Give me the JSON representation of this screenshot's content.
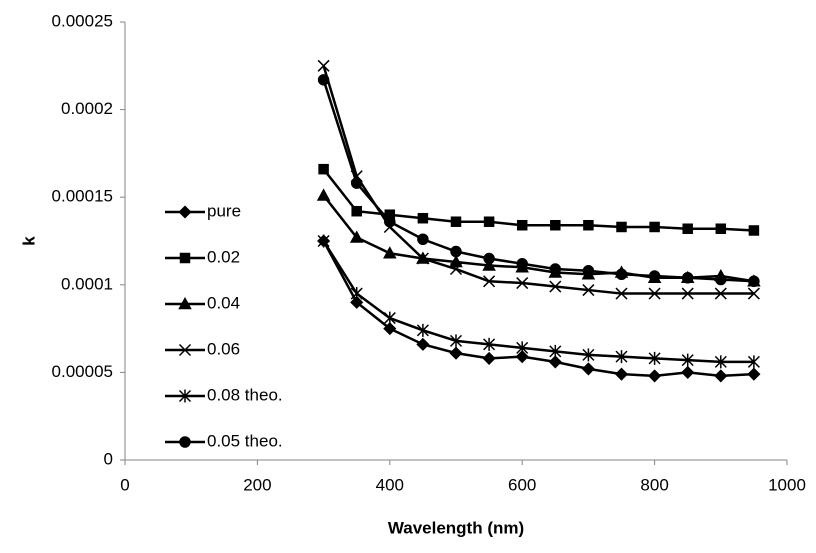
{
  "chart_data": {
    "type": "line",
    "x_label": "Wavelength (nm)",
    "y_label": "k",
    "x": [
      300,
      350,
      400,
      450,
      500,
      550,
      600,
      650,
      700,
      750,
      800,
      850,
      900,
      950
    ],
    "series": [
      {
        "name": "pure",
        "color": "#000000",
        "marker": "diamond",
        "values": [
          0.000125,
          9e-05,
          7.5e-05,
          6.6e-05,
          6.1e-05,
          5.8e-05,
          5.9e-05,
          5.6e-05,
          5.2e-05,
          4.9e-05,
          4.8e-05,
          5e-05,
          4.8e-05,
          4.9e-05
        ]
      },
      {
        "name": "0.02",
        "color": "#000000",
        "marker": "square",
        "values": [
          0.000166,
          0.000142,
          0.00014,
          0.000138,
          0.000136,
          0.000136,
          0.000134,
          0.000134,
          0.000134,
          0.000133,
          0.000133,
          0.000132,
          0.000132,
          0.000131
        ]
      },
      {
        "name": "0.04",
        "color": "#000000",
        "marker": "triangle",
        "values": [
          0.000151,
          0.000127,
          0.000118,
          0.000115,
          0.000113,
          0.000111,
          0.00011,
          0.000107,
          0.000106,
          0.000107,
          0.000104,
          0.000104,
          0.000105,
          0.000102
        ]
      },
      {
        "name": "0.06",
        "color": "#000000",
        "marker": "x",
        "values": [
          0.000225,
          0.000162,
          0.000133,
          0.000115,
          0.000109,
          0.000102,
          0.000101,
          9.9e-05,
          9.7e-05,
          9.5e-05,
          9.5e-05,
          9.5e-05,
          9.5e-05,
          9.5e-05
        ]
      },
      {
        "name": "0.08 theo.",
        "color": "#000000",
        "marker": "asterisk",
        "values": [
          0.000125,
          9.5e-05,
          8.1e-05,
          7.4e-05,
          6.8e-05,
          6.6e-05,
          6.4e-05,
          6.2e-05,
          6e-05,
          5.9e-05,
          5.8e-05,
          5.7e-05,
          5.6e-05,
          5.6e-05
        ]
      },
      {
        "name": "0.05 theo.",
        "color": "#000000",
        "marker": "circle",
        "values": [
          0.000217,
          0.000158,
          0.000136,
          0.000126,
          0.000119,
          0.000115,
          0.000112,
          0.000109,
          0.000108,
          0.000106,
          0.000105,
          0.000104,
          0.000103,
          0.000102
        ]
      }
    ],
    "xlim": [
      0,
      1000
    ],
    "xticks": [
      0,
      200,
      400,
      600,
      800,
      1000
    ],
    "ylim": [
      0,
      0.00025
    ],
    "yticks": [
      0,
      5e-05,
      0.0001,
      0.00015,
      0.0002,
      0.00025
    ],
    "grid": false,
    "legend": "left"
  }
}
